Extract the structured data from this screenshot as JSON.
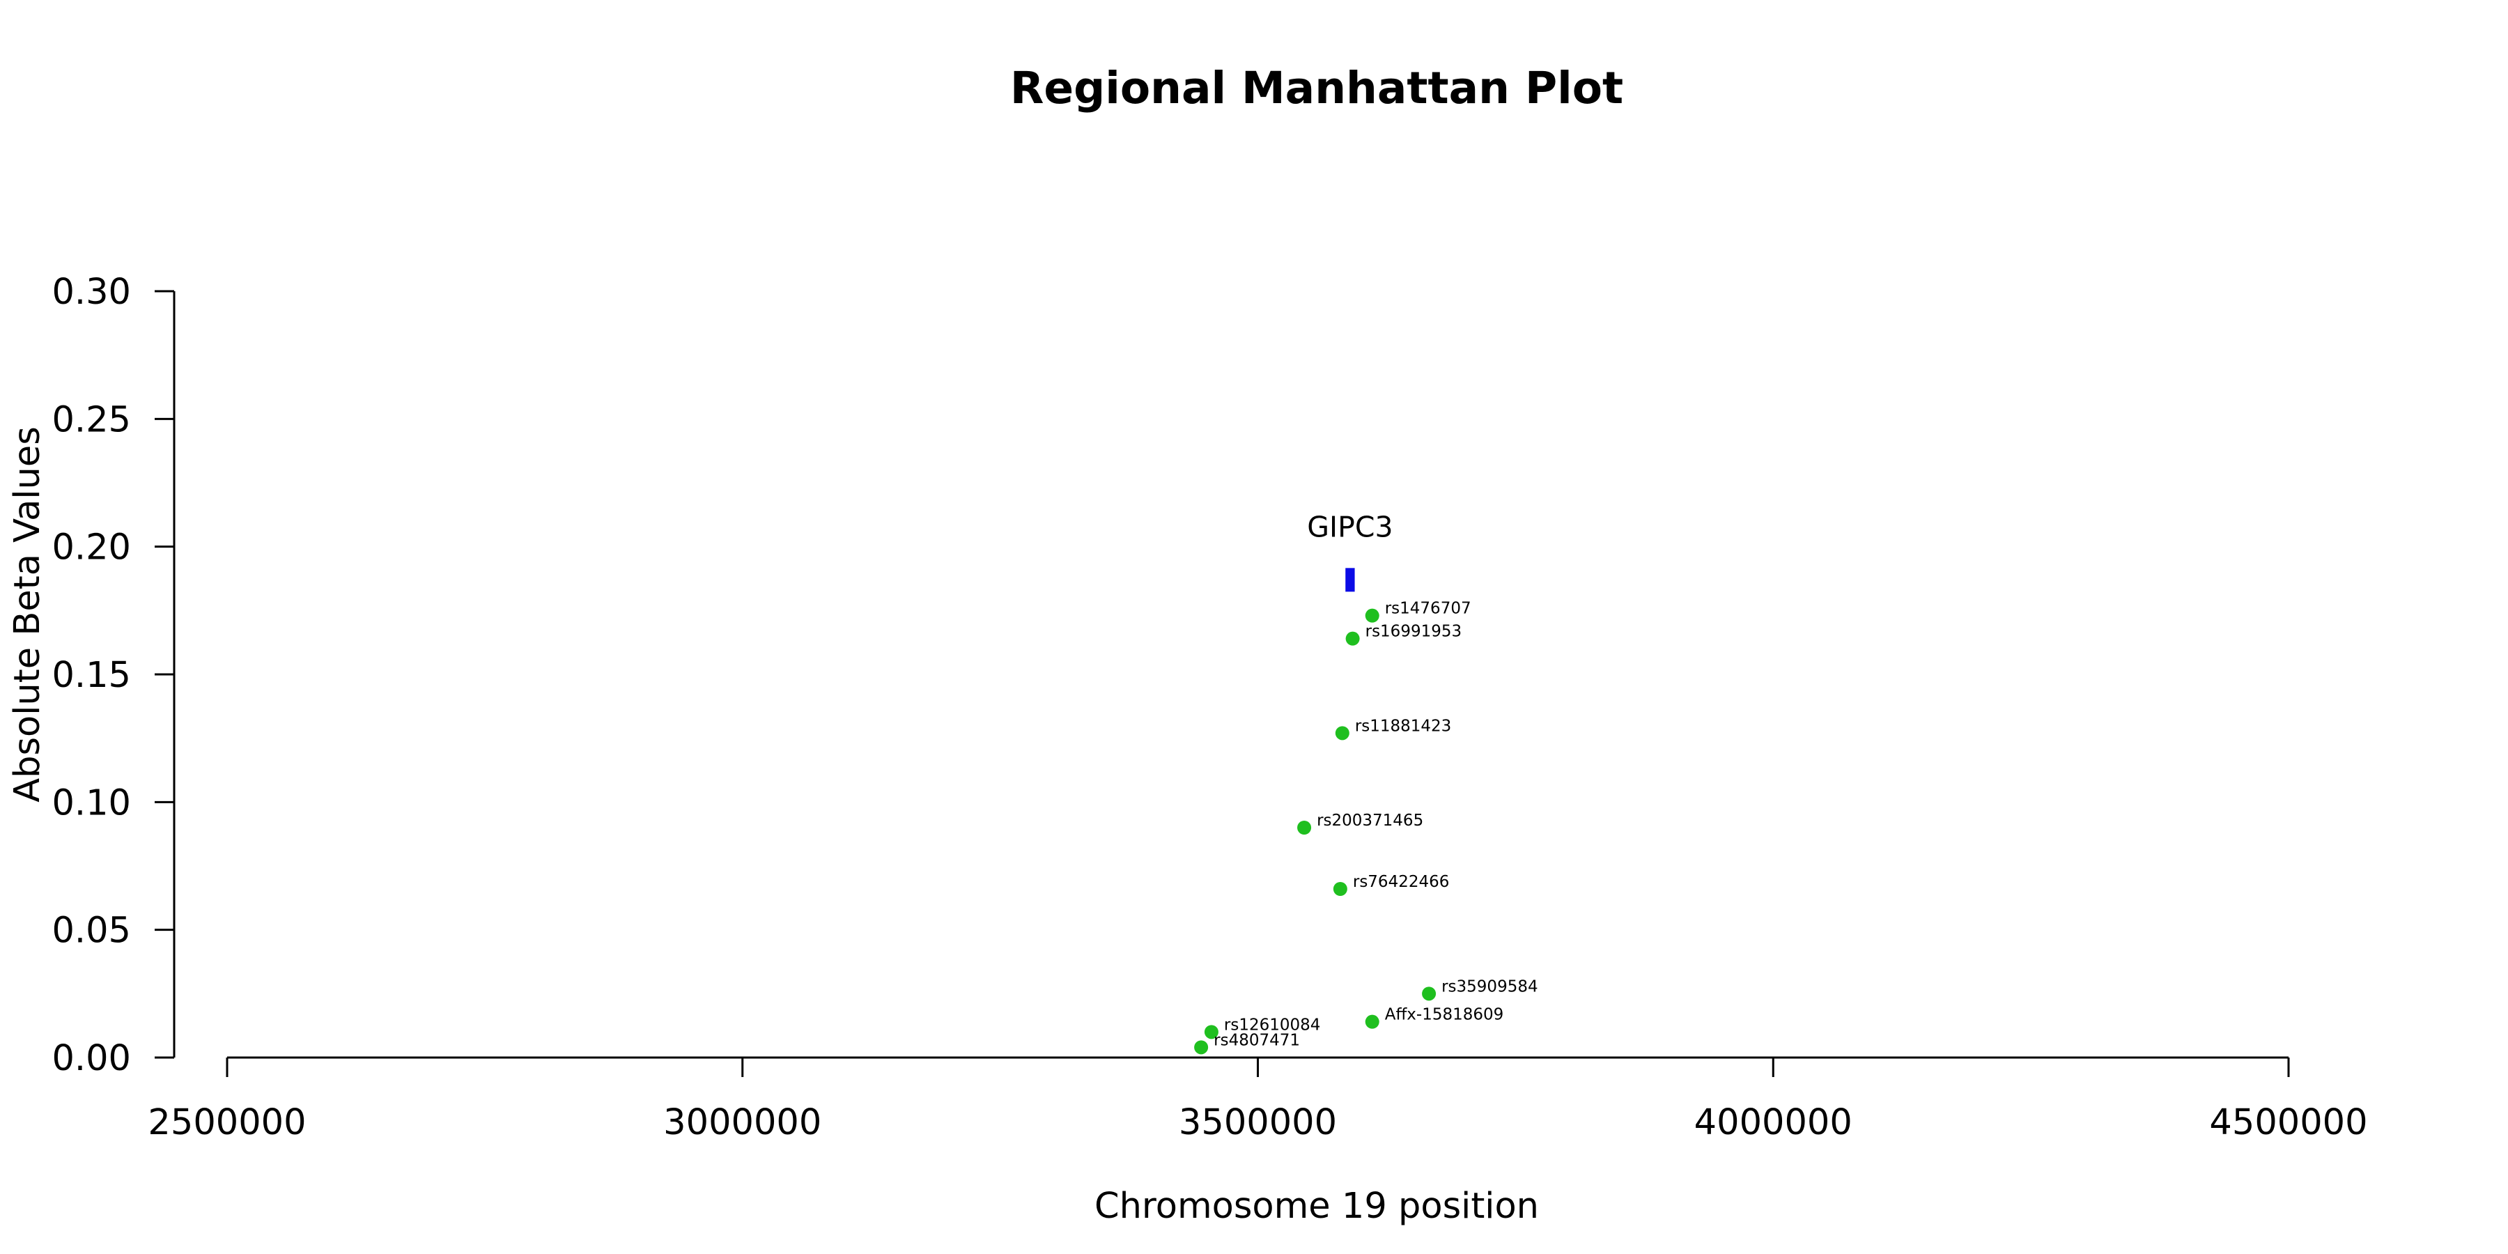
{
  "chart_data": {
    "type": "scatter",
    "title": "Regional Manhattan Plot",
    "xlabel": "Chromosome 19 position",
    "ylabel": "Absolute Beta Values",
    "xlim": [
      2500000,
      4500000
    ],
    "ylim": [
      0,
      0.3
    ],
    "x_ticks": [
      2500000,
      3000000,
      3500000,
      4000000,
      4500000
    ],
    "x_tick_labels": [
      "2500000",
      "3000000",
      "3500000",
      "4000000",
      "4500000"
    ],
    "y_ticks": [
      0,
      0.05,
      0.1,
      0.15,
      0.2,
      0.25,
      0.3
    ],
    "y_tick_labels": [
      "0.00",
      "0.05",
      "0.10",
      "0.15",
      "0.20",
      "0.25",
      "0.30"
    ],
    "grid": false,
    "point_color": "#1fbf1f",
    "gene_color": "#0b0be6",
    "points": [
      {
        "label": "rs1476707",
        "x": 3611000,
        "y": 0.173
      },
      {
        "label": "rs16991953",
        "x": 3592000,
        "y": 0.164
      },
      {
        "label": "rs11881423",
        "x": 3582000,
        "y": 0.127
      },
      {
        "label": "rs200371465",
        "x": 3545000,
        "y": 0.09
      },
      {
        "label": "rs76422466",
        "x": 3580000,
        "y": 0.066
      },
      {
        "label": "rs35909584",
        "x": 3666000,
        "y": 0.025
      },
      {
        "label": "Affx-15818609",
        "x": 3611000,
        "y": 0.014
      },
      {
        "label": "rs12610084",
        "x": 3455000,
        "y": 0.01
      },
      {
        "label": "rs4807471",
        "x": 3445000,
        "y": 0.004
      }
    ],
    "genes": [
      {
        "label": "GIPC3",
        "x_start": 3585000,
        "x_end": 3594000,
        "y": 0.187
      }
    ]
  }
}
